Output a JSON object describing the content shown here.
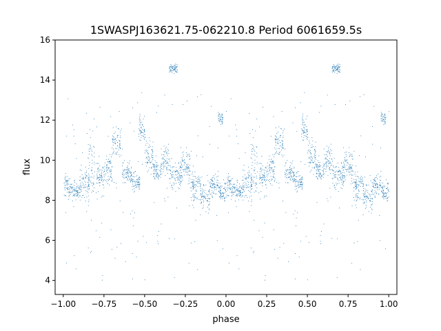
{
  "chart_data": {
    "type": "scatter",
    "title": "1SWASPJ163621.75-062210.8 Period 6061659.5s",
    "xlabel": "phase",
    "ylabel": "flux",
    "xlim": [
      -1.05,
      1.05
    ],
    "ylim": [
      3.3,
      16
    ],
    "xticks": [
      "−1.00",
      "−0.75",
      "−0.50",
      "−0.25",
      "0.00",
      "0.25",
      "0.50",
      "0.75",
      "1.00"
    ],
    "xtick_values": [
      -1.0,
      -0.75,
      -0.5,
      -0.25,
      0.0,
      0.25,
      0.5,
      0.75,
      1.0
    ],
    "yticks": [
      "4",
      "6",
      "8",
      "10",
      "12",
      "14",
      "16"
    ],
    "ytick_values": [
      4,
      6,
      8,
      10,
      12,
      14,
      16
    ],
    "grid": false,
    "marker_color": "#1f77b4",
    "series": [
      {
        "points_per_phase_unit": 600,
        "description_of_shape": "dense scatter of phase-folded flux; main band ~8-10, clusters reaching ~12-15",
        "clusters": [
          {
            "x": [
              0.0,
              0.04
            ],
            "y": [
              7.8,
              9.6
            ]
          },
          {
            "x": [
              0.04,
              0.1
            ],
            "y": [
              7.8,
              9.2
            ]
          },
          {
            "x": [
              0.1,
              0.16
            ],
            "y": [
              7.6,
              10.2
            ]
          },
          {
            "x": [
              0.15,
              0.19
            ],
            "y": [
              7.0,
              12.4
            ]
          },
          {
            "x": [
              0.2,
              0.25
            ],
            "y": [
              8.0,
              10.4
            ]
          },
          {
            "x": [
              0.25,
              0.3
            ],
            "y": [
              8.4,
              10.8
            ]
          },
          {
            "x": [
              0.3,
              0.35
            ],
            "y": [
              9.8,
              12.0
            ]
          },
          {
            "x": [
              0.36,
              0.42
            ],
            "y": [
              8.4,
              10.2
            ]
          },
          {
            "x": [
              0.42,
              0.47
            ],
            "y": [
              8.2,
              9.6
            ]
          },
          {
            "x": [
              0.46,
              0.5
            ],
            "y": [
              10.6,
              12.6
            ]
          },
          {
            "x": [
              0.5,
              0.55
            ],
            "y": [
              9.0,
              11.4
            ]
          },
          {
            "x": [
              0.55,
              0.6
            ],
            "y": [
              8.8,
              10.2
            ]
          },
          {
            "x": [
              0.6,
              0.65
            ],
            "y": [
              9.0,
              11.0
            ]
          },
          {
            "x": [
              0.65,
              0.7
            ],
            "y": [
              14.2,
              15.0
            ]
          },
          {
            "x": [
              0.65,
              0.72
            ],
            "y": [
              8.0,
              10.6
            ]
          },
          {
            "x": [
              0.72,
              0.78
            ],
            "y": [
              8.4,
              11.0
            ]
          },
          {
            "x": [
              0.78,
              0.84
            ],
            "y": [
              7.6,
              9.8
            ]
          },
          {
            "x": [
              0.84,
              0.9
            ],
            "y": [
              7.0,
              9.4
            ]
          },
          {
            "x": [
              0.9,
              0.95
            ],
            "y": [
              8.0,
              9.6
            ]
          },
          {
            "x": [
              0.95,
              1.0
            ],
            "y": [
              7.8,
              9.2
            ]
          },
          {
            "x": [
              0.95,
              0.98
            ],
            "y": [
              11.6,
              12.6
            ]
          }
        ]
      }
    ]
  }
}
